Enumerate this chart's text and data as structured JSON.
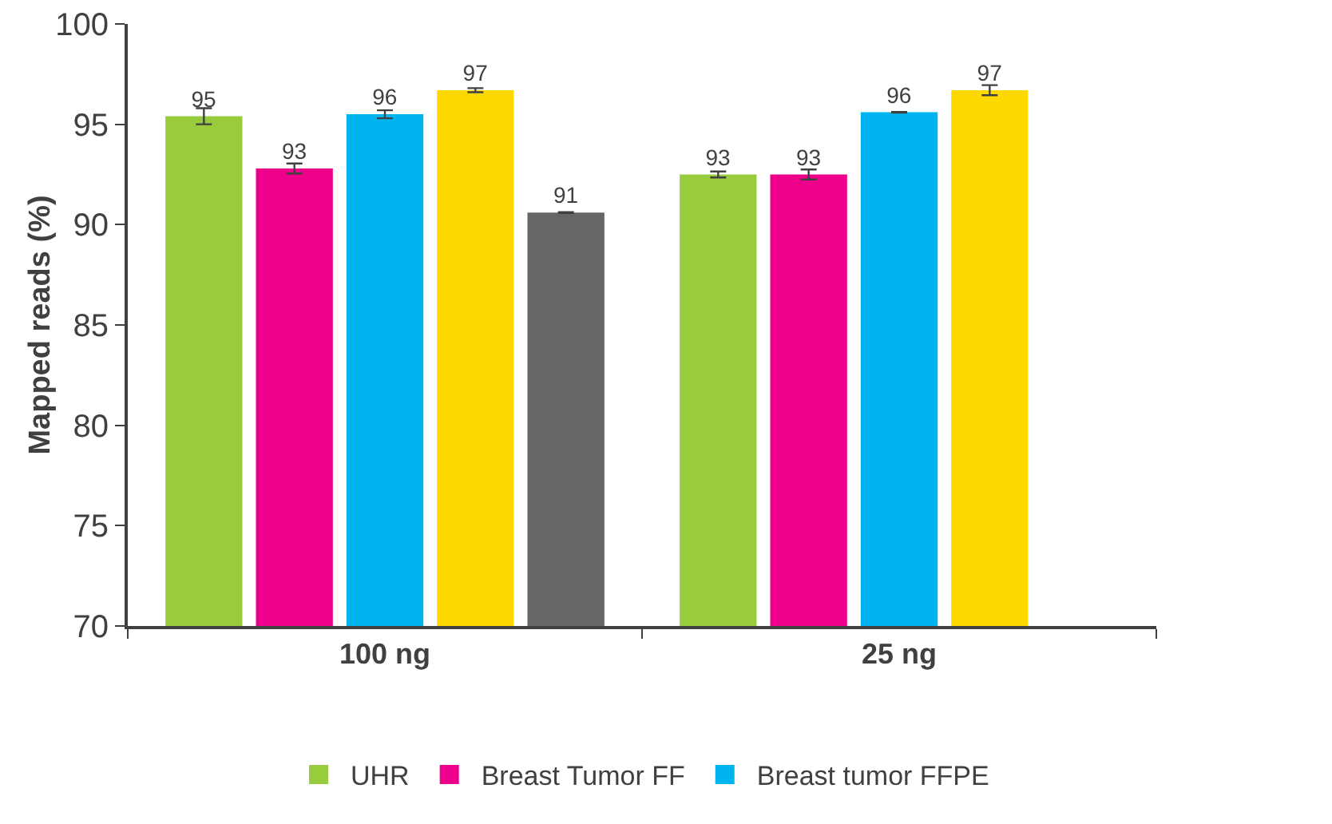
{
  "chart_data": {
    "type": "bar",
    "ylabel": "Mapped reads (%)",
    "categories": [
      "100 ng",
      "25 ng"
    ],
    "ylim": [
      70,
      100
    ],
    "yticks": [
      70,
      75,
      80,
      85,
      90,
      95,
      100
    ],
    "grid": false,
    "legend": "bottom",
    "series": [
      {
        "name": "UHR",
        "color": "#99cc3d",
        "values": [
          95.4,
          92.5
        ],
        "errors": [
          0.4,
          0.15
        ],
        "value_labels": [
          "95",
          "93"
        ]
      },
      {
        "name": "Breast Tumor FF",
        "color": "#ec008c",
        "values": [
          92.8,
          92.5
        ],
        "errors": [
          0.25,
          0.25
        ],
        "value_labels": [
          "93",
          "93"
        ]
      },
      {
        "name": "Breast tumor FFPE",
        "color": "#00b5ef",
        "values": [
          95.5,
          95.6
        ],
        "errors": [
          0.2,
          0.02
        ],
        "value_labels": [
          "96",
          "96"
        ]
      },
      {
        "color": "#ffd800",
        "values": [
          96.7,
          96.7
        ],
        "errors": [
          0.1,
          0.25
        ],
        "value_labels": [
          "97",
          "97"
        ]
      },
      {
        "color": "#666666",
        "values": [
          90.6,
          null
        ],
        "errors": [
          0.02,
          null
        ],
        "value_labels": [
          "91",
          null
        ]
      }
    ]
  }
}
